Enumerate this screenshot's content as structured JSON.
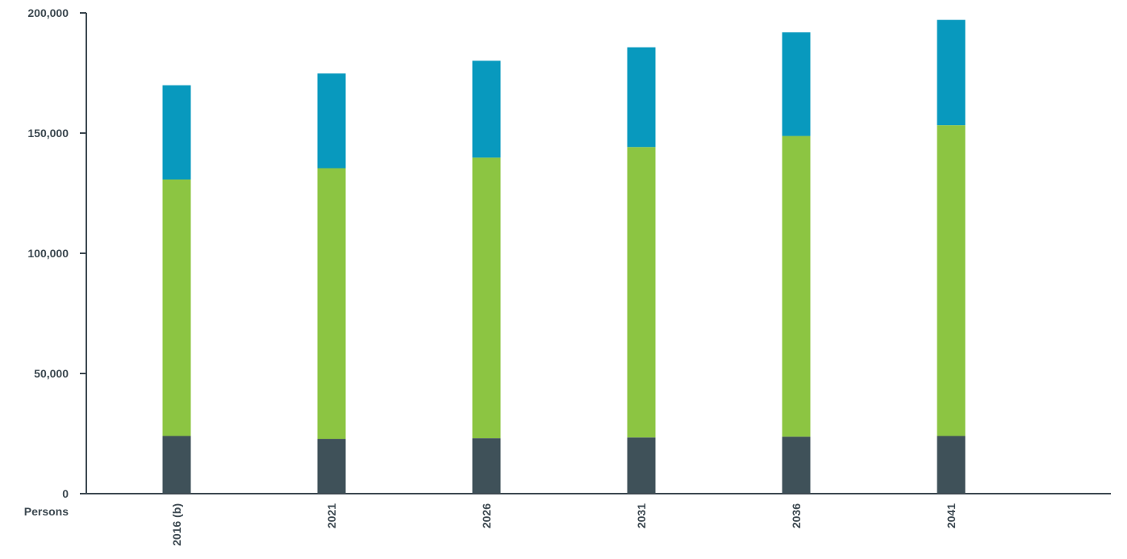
{
  "chart_data": {
    "type": "bar",
    "stacked": true,
    "categories": [
      "2016 (b)",
      "2021",
      "2026",
      "2031",
      "2036",
      "2041"
    ],
    "series": [
      {
        "color": "#3f5159",
        "values": [
          24000,
          22800,
          23100,
          23400,
          23700,
          24000
        ]
      },
      {
        "color": "#8cc542",
        "values": [
          106700,
          112600,
          116700,
          120800,
          125100,
          129300
        ]
      },
      {
        "color": "#0899be",
        "values": [
          39200,
          39400,
          40300,
          41500,
          43100,
          43800
        ]
      }
    ],
    "y_unit_label": "Persons",
    "ylim": [
      0,
      200000
    ],
    "yticks": [
      0,
      50000,
      100000,
      150000,
      200000
    ],
    "ytick_labels": [
      "0",
      "50,000",
      "100,000",
      "150,000",
      "200,000"
    ],
    "grid": false,
    "legend": "none",
    "axis_color": "#3e4a52"
  }
}
